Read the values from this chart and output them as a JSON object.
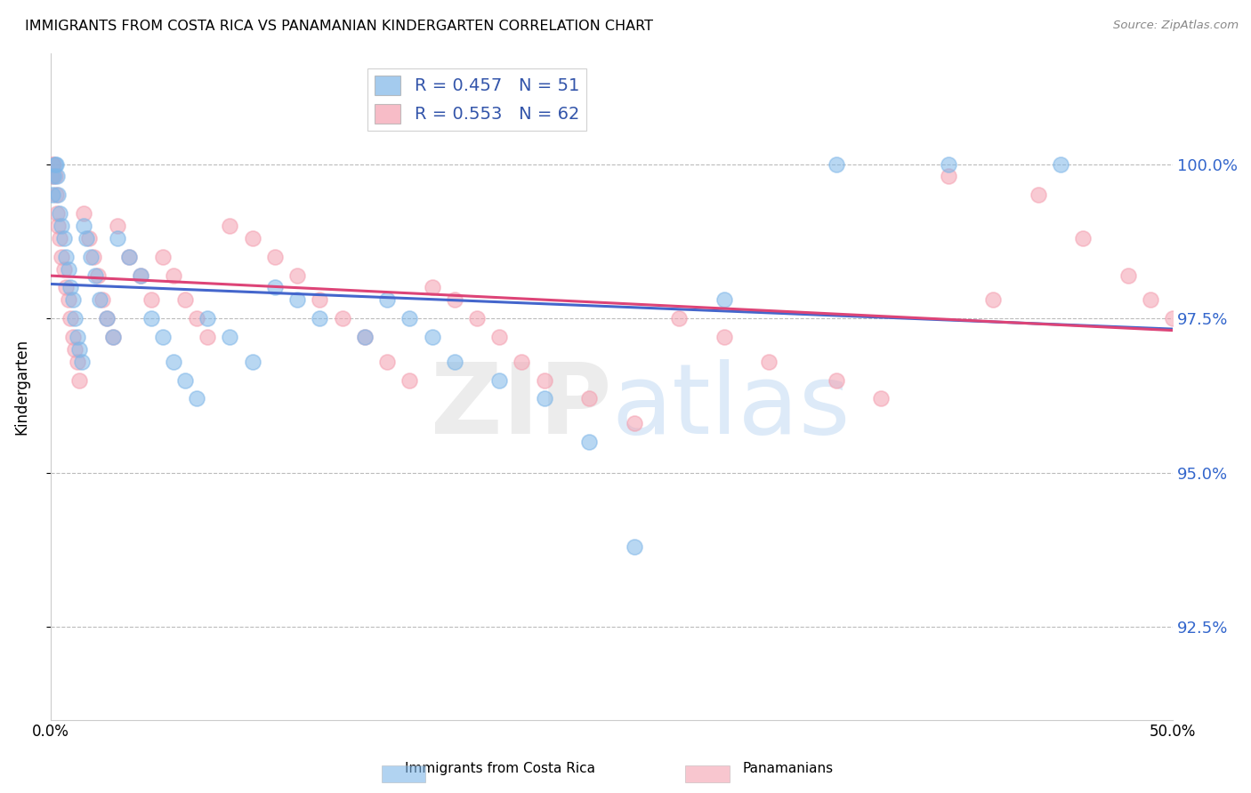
{
  "title": "IMMIGRANTS FROM COSTA RICA VS PANAMANIAN KINDERGARTEN CORRELATION CHART",
  "source_text": "Source: ZipAtlas.com",
  "ylabel": "Kindergarten",
  "x_min": 0.0,
  "x_max": 50.0,
  "y_min": 91.0,
  "y_max": 101.8,
  "y_ticks": [
    92.5,
    95.0,
    97.5,
    100.0
  ],
  "x_ticks": [
    0.0,
    10.0,
    20.0,
    30.0,
    40.0,
    50.0
  ],
  "x_tick_labels": [
    "0.0%",
    "",
    "",
    "",
    "",
    "50.0%"
  ],
  "y_tick_labels": [
    "92.5%",
    "95.0%",
    "97.5%",
    "100.0%"
  ],
  "legend_labels": [
    "Immigrants from Costa Rica",
    "Panamanians"
  ],
  "r_blue": 0.457,
  "n_blue": 51,
  "r_pink": 0.553,
  "n_pink": 62,
  "blue_color": "#7EB6E8",
  "pink_color": "#F4A0B0",
  "blue_line_color": "#4466CC",
  "pink_line_color": "#DD4477",
  "watermark_zip": "ZIP",
  "watermark_atlas": "atlas",
  "blue_x": [
    0.1,
    0.15,
    0.2,
    0.25,
    0.3,
    0.35,
    0.4,
    0.5,
    0.6,
    0.7,
    0.8,
    0.9,
    1.0,
    1.1,
    1.2,
    1.3,
    1.4,
    1.5,
    1.6,
    1.8,
    2.0,
    2.2,
    2.5,
    2.8,
    3.0,
    3.5,
    4.0,
    4.5,
    5.0,
    5.5,
    6.0,
    6.5,
    7.0,
    8.0,
    9.0,
    10.0,
    11.0,
    12.0,
    14.0,
    15.0,
    16.0,
    17.0,
    18.0,
    20.0,
    22.0,
    24.0,
    26.0,
    30.0,
    35.0,
    40.0,
    45.0
  ],
  "blue_y": [
    99.5,
    99.8,
    100.0,
    100.0,
    99.8,
    99.5,
    99.2,
    99.0,
    98.8,
    98.5,
    98.3,
    98.0,
    97.8,
    97.5,
    97.2,
    97.0,
    96.8,
    99.0,
    98.8,
    98.5,
    98.2,
    97.8,
    97.5,
    97.2,
    98.8,
    98.5,
    98.2,
    97.5,
    97.2,
    96.8,
    96.5,
    96.2,
    97.5,
    97.2,
    96.8,
    98.0,
    97.8,
    97.5,
    97.2,
    97.8,
    97.5,
    97.2,
    96.8,
    96.5,
    96.2,
    95.5,
    93.8,
    97.8,
    100.0,
    100.0,
    100.0
  ],
  "pink_x": [
    0.05,
    0.1,
    0.15,
    0.2,
    0.25,
    0.3,
    0.35,
    0.4,
    0.5,
    0.6,
    0.7,
    0.8,
    0.9,
    1.0,
    1.1,
    1.2,
    1.3,
    1.5,
    1.7,
    1.9,
    2.1,
    2.3,
    2.5,
    2.8,
    3.0,
    3.5,
    4.0,
    4.5,
    5.0,
    5.5,
    6.0,
    6.5,
    7.0,
    8.0,
    9.0,
    10.0,
    11.0,
    12.0,
    13.0,
    14.0,
    15.0,
    16.0,
    17.0,
    18.0,
    19.0,
    20.0,
    21.0,
    22.0,
    24.0,
    26.0,
    28.0,
    30.0,
    32.0,
    35.0,
    37.0,
    40.0,
    42.0,
    44.0,
    46.0,
    48.0,
    49.0,
    50.0
  ],
  "pink_y": [
    99.8,
    100.0,
    100.0,
    99.8,
    99.5,
    99.2,
    99.0,
    98.8,
    98.5,
    98.3,
    98.0,
    97.8,
    97.5,
    97.2,
    97.0,
    96.8,
    96.5,
    99.2,
    98.8,
    98.5,
    98.2,
    97.8,
    97.5,
    97.2,
    99.0,
    98.5,
    98.2,
    97.8,
    98.5,
    98.2,
    97.8,
    97.5,
    97.2,
    99.0,
    98.8,
    98.5,
    98.2,
    97.8,
    97.5,
    97.2,
    96.8,
    96.5,
    98.0,
    97.8,
    97.5,
    97.2,
    96.8,
    96.5,
    96.2,
    95.8,
    97.5,
    97.2,
    96.8,
    96.5,
    96.2,
    99.8,
    97.8,
    99.5,
    98.8,
    98.2,
    97.8,
    97.5
  ]
}
